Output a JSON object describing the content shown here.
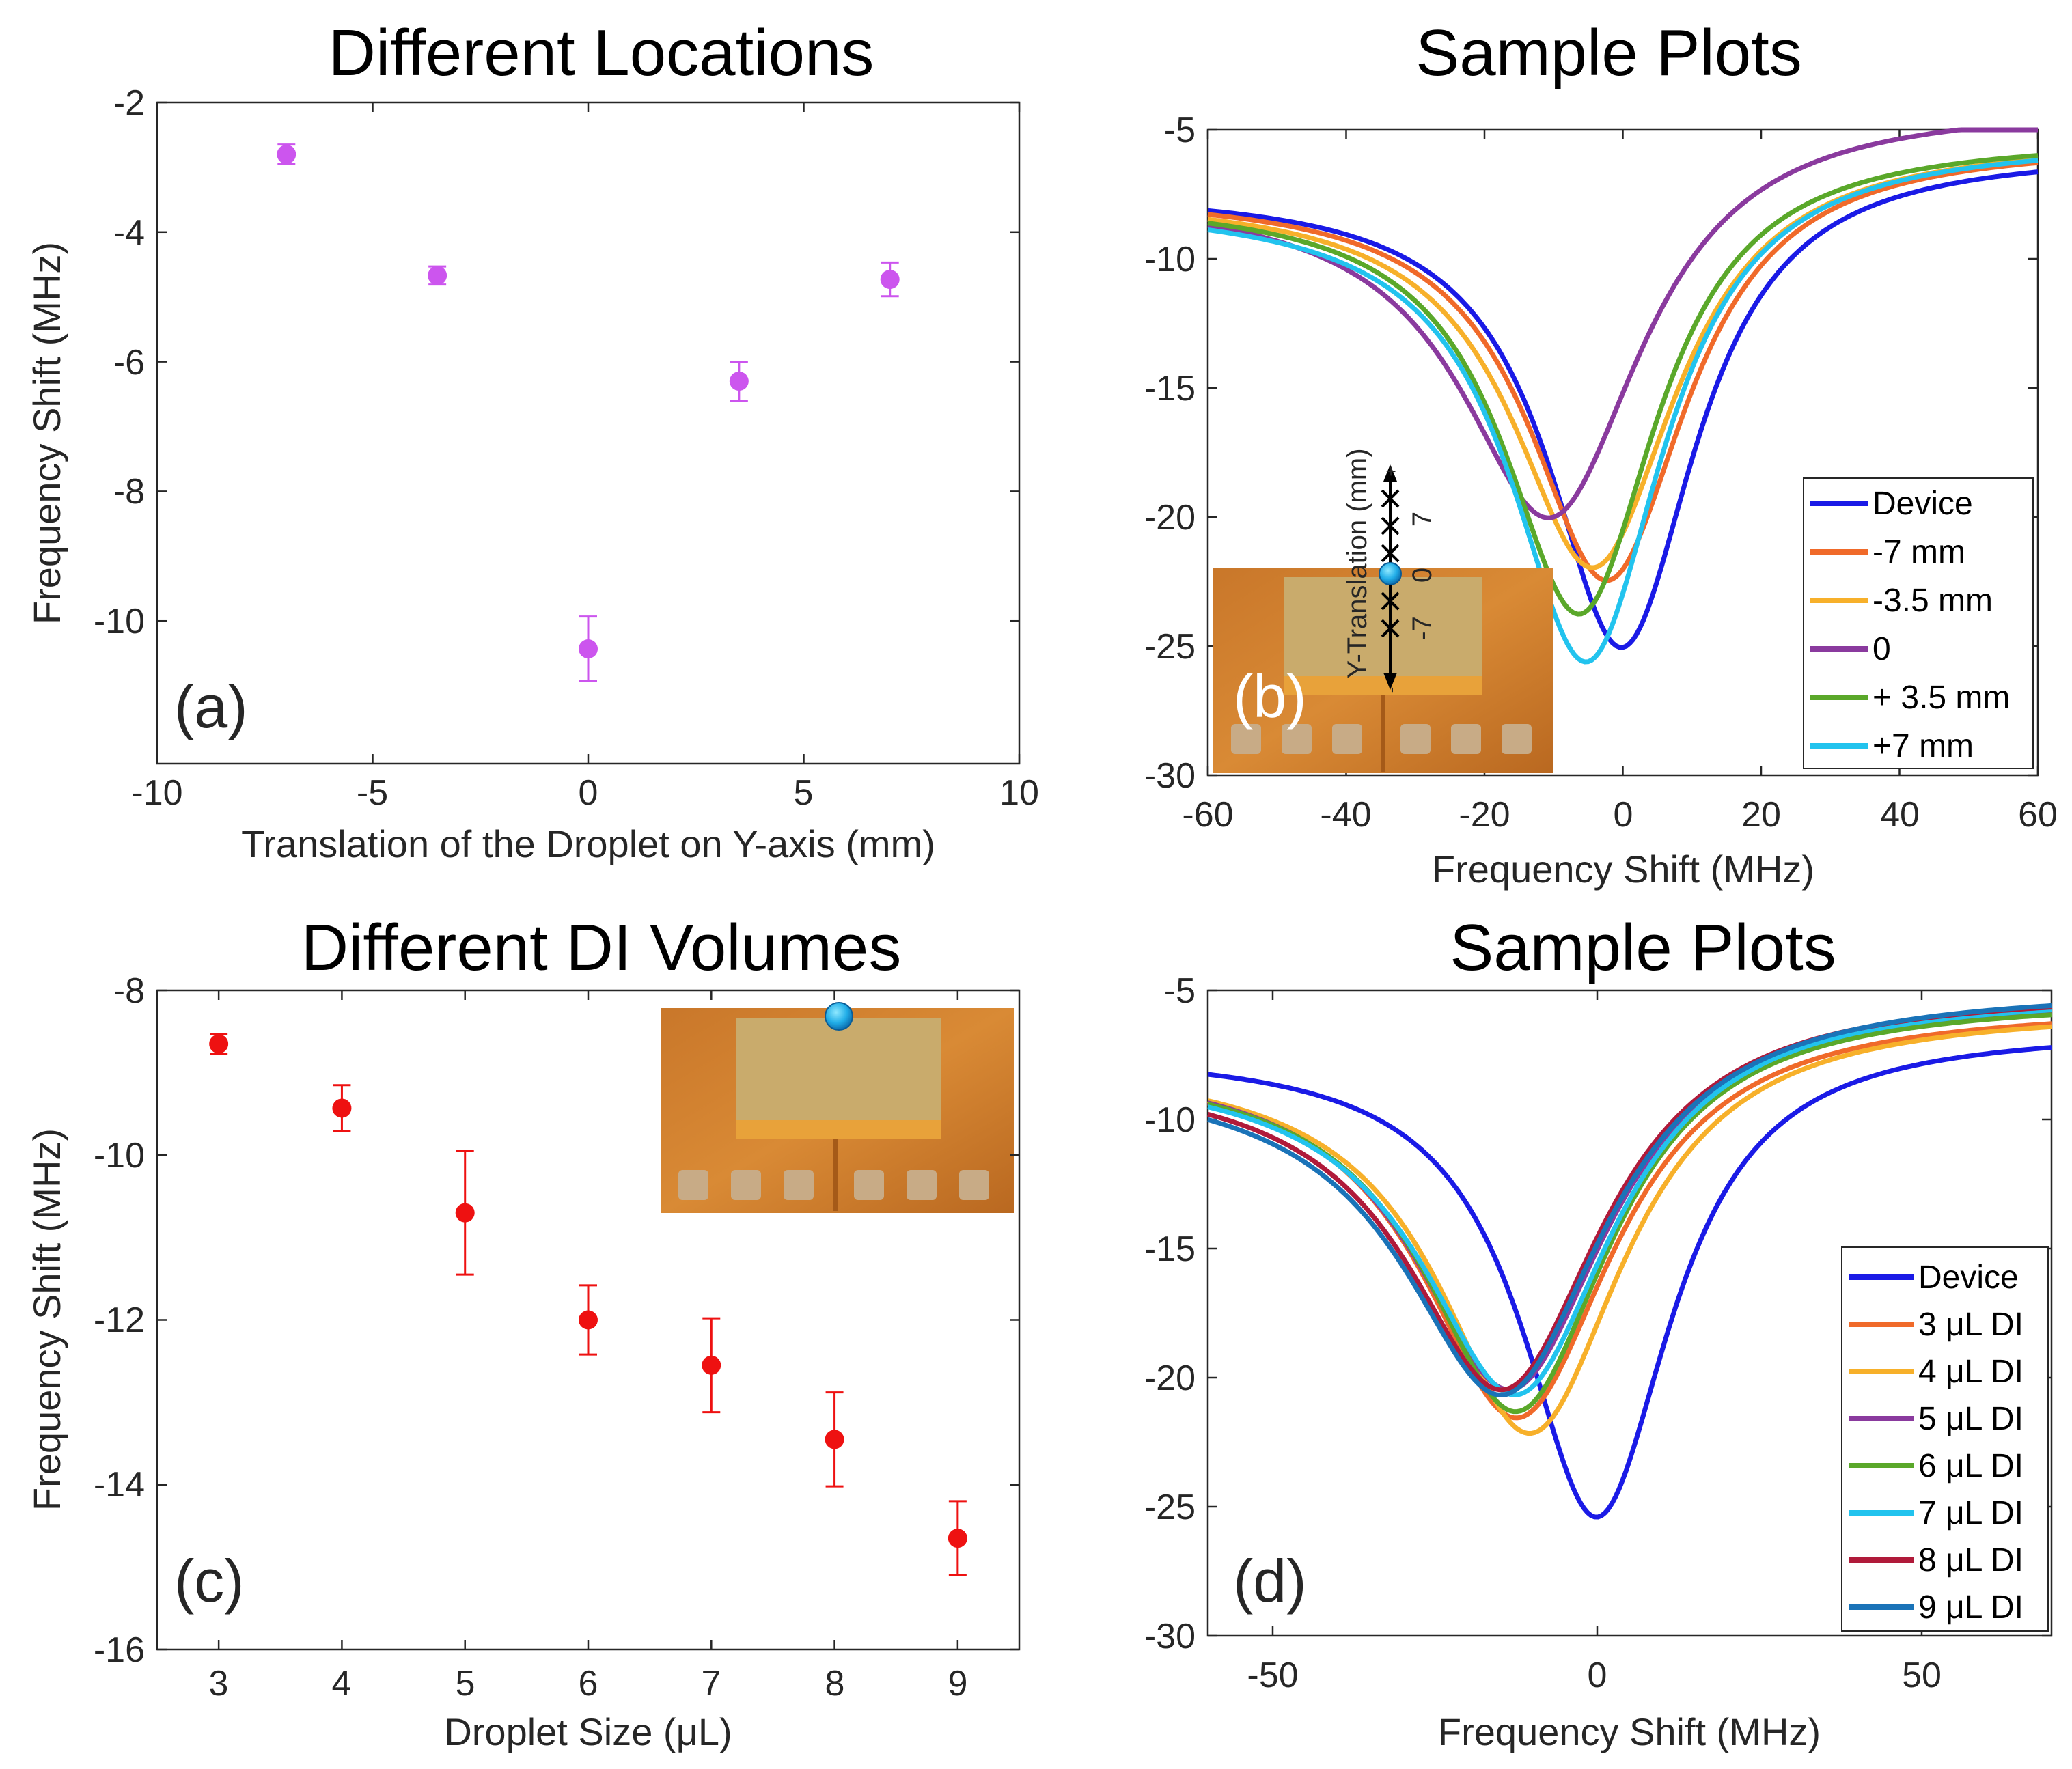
{
  "chart_data": [
    {
      "id": "a",
      "type": "scatter",
      "title": "Different Locations",
      "panel_label": "(a)",
      "xlabel": "Translation of the Droplet on Y-axis (mm)",
      "ylabel": "Frequency Shift (MHz)",
      "xlim": [
        -10,
        10
      ],
      "ylim": [
        -12.2,
        -2
      ],
      "xticks": [
        -10,
        -5,
        0,
        5,
        10
      ],
      "yticks": [
        -2,
        -4,
        -6,
        -8,
        -10
      ],
      "color": "#cc55ee",
      "points": [
        {
          "x": -7,
          "y": -2.8,
          "err": 0.15
        },
        {
          "x": -3.5,
          "y": -4.67,
          "err": 0.14
        },
        {
          "x": 0,
          "y": -10.43,
          "err": 0.5
        },
        {
          "x": 3.5,
          "y": -6.3,
          "err": 0.3
        },
        {
          "x": 7,
          "y": -4.73,
          "err": 0.26
        }
      ]
    },
    {
      "id": "b",
      "type": "line",
      "title": "Sample Plots",
      "panel_label": "(b)",
      "xlabel": "Frequency Shift (MHz)",
      "ylabel": "",
      "xlim": [
        -60,
        60
      ],
      "ylim": [
        -30,
        -5
      ],
      "xticks": [
        -60,
        -40,
        -20,
        0,
        20,
        40,
        60
      ],
      "yticks": [
        -5,
        -10,
        -15,
        -20,
        -25,
        -30
      ],
      "legend_position": "bottom-right",
      "inset_labels": [
        "Y-Translation (mm)",
        "-7",
        "0",
        "7",
        "+",
        "-"
      ],
      "series": [
        {
          "name": "Device",
          "color": "#1a1ae6",
          "center": 0,
          "depth": 18.5,
          "width": 13,
          "left": -7.3,
          "right": -5.8
        },
        {
          "name": "-7 mm",
          "color": "#f06a2a",
          "center": -2,
          "depth": 16.0,
          "width": 14,
          "left": -7.4,
          "right": -5.5
        },
        {
          "name": "-3.5 mm",
          "color": "#f7b02a",
          "center": -4,
          "depth": 15.5,
          "width": 14.5,
          "left": -7.5,
          "right": -5.4
        },
        {
          "name": "0",
          "color": "#8a3a9e",
          "center": -10,
          "depth": 14.3,
          "width": 16,
          "left": -7.4,
          "right": -4.0
        },
        {
          "name": "+ 3.5 mm",
          "color": "#5aa82a",
          "center": -6,
          "depth": 17.3,
          "width": 13.5,
          "left": -7.6,
          "right": -5.3
        },
        {
          "name": "+7 mm",
          "color": "#22c3ee",
          "center": -5,
          "depth": 19.0,
          "width": 13.5,
          "left": -7.8,
          "right": -5.4
        }
      ]
    },
    {
      "id": "c",
      "type": "scatter",
      "title": "Different DI Volumes",
      "panel_label": "(c)",
      "xlabel": "Droplet Size (μL)",
      "ylabel": "Frequency Shift (MHz)",
      "xlim": [
        2.5,
        9.5
      ],
      "ylim": [
        -16,
        -8
      ],
      "xticks": [
        3,
        4,
        5,
        6,
        7,
        8,
        9
      ],
      "yticks": [
        -8,
        -10,
        -12,
        -14,
        -16
      ],
      "color": "#ee1111",
      "points": [
        {
          "x": 3,
          "y": -8.65,
          "err": 0.12
        },
        {
          "x": 4,
          "y": -9.43,
          "err": 0.28
        },
        {
          "x": 5,
          "y": -10.7,
          "err": 0.75
        },
        {
          "x": 6,
          "y": -12.0,
          "err": 0.42
        },
        {
          "x": 7,
          "y": -12.55,
          "err": 0.57
        },
        {
          "x": 8,
          "y": -13.45,
          "err": 0.57
        },
        {
          "x": 9,
          "y": -14.65,
          "err": 0.45
        }
      ]
    },
    {
      "id": "d",
      "type": "line",
      "title": "Sample Plots",
      "panel_label": "(d)",
      "xlabel": "Frequency Shift (MHz)",
      "ylabel": "",
      "xlim": [
        -60,
        70
      ],
      "ylim": [
        -30,
        -5
      ],
      "xticks": [
        -50,
        0,
        50
      ],
      "yticks": [
        -5,
        -10,
        -15,
        -20,
        -25,
        -30
      ],
      "legend_position": "bottom-right",
      "series": [
        {
          "name": "Device",
          "color": "#1a1ae6",
          "center": 0,
          "depth": 18.5,
          "width": 14,
          "left": -7.3,
          "right": -6.5
        },
        {
          "name": "3 μL DI",
          "color": "#f06a2a",
          "center": -12,
          "depth": 15.0,
          "width": 18,
          "left": -7.5,
          "right": -5.6
        },
        {
          "name": "4 μL DI",
          "color": "#f7b02a",
          "center": -10,
          "depth": 15.5,
          "width": 17.5,
          "left": -7.6,
          "right": -5.7
        },
        {
          "name": "5 μL DI",
          "color": "#8a3a9e",
          "center": -13,
          "depth": 14.0,
          "width": 18,
          "left": -7.6,
          "right": -5.3
        },
        {
          "name": "6 μL DI",
          "color": "#5aa82a",
          "center": -12,
          "depth": 14.8,
          "width": 17.5,
          "left": -7.7,
          "right": -5.3
        },
        {
          "name": "7 μL DI",
          "color": "#22c3ee",
          "center": -12,
          "depth": 14.2,
          "width": 18,
          "left": -7.8,
          "right": -5.1
        },
        {
          "name": "8 μL DI",
          "color": "#b01a3a",
          "center": -14,
          "depth": 14.0,
          "width": 18.5,
          "left": -7.9,
          "right": -5.0
        },
        {
          "name": "9 μL DI",
          "color": "#1a73b8",
          "center": -14,
          "depth": 14.2,
          "width": 19,
          "left": -8.0,
          "right": -4.9
        }
      ]
    }
  ]
}
